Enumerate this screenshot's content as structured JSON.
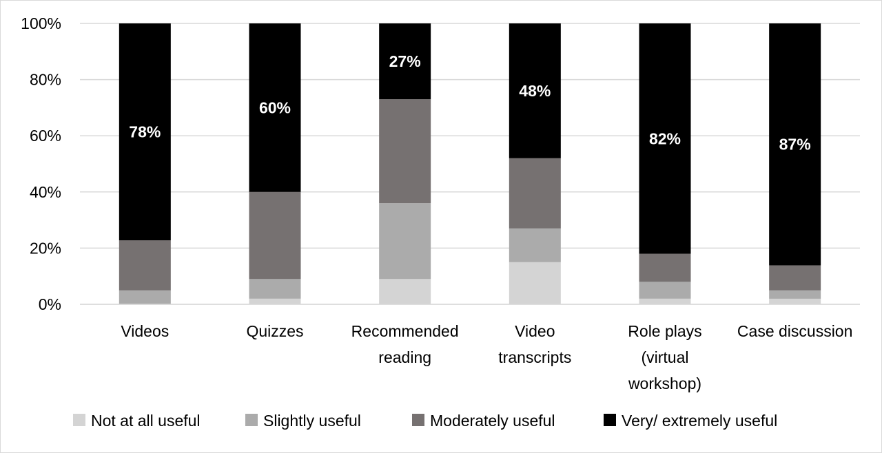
{
  "chart_data": {
    "type": "bar",
    "stacked": true,
    "percent_stacked": true,
    "categories": [
      [
        "Videos"
      ],
      [
        "Quizzes"
      ],
      [
        "Recommended",
        "reading"
      ],
      [
        "Video",
        "transcripts"
      ],
      [
        "Role plays",
        "(virtual",
        "workshop)"
      ],
      [
        "Case discussion"
      ]
    ],
    "series": [
      {
        "name": "Not at all useful",
        "color": "#d4d4d4",
        "values": [
          0,
          2,
          9,
          15,
          2,
          2
        ]
      },
      {
        "name": "Slightly useful",
        "color": "#ababab",
        "values": [
          5,
          7,
          27,
          12,
          6,
          3
        ]
      },
      {
        "name": "Moderately useful",
        "color": "#767171",
        "values": [
          18,
          31,
          37,
          25,
          10,
          9
        ]
      },
      {
        "name": "Very/ extremely useful",
        "color": "#000000",
        "values": [
          78,
          60,
          27,
          48,
          82,
          87
        ]
      }
    ],
    "data_labels": [
      "78%",
      "60%",
      "27%",
      "48%",
      "82%",
      "87%"
    ],
    "y_ticks": [
      "0%",
      "20%",
      "40%",
      "60%",
      "80%",
      "100%"
    ],
    "ylim": [
      0,
      100
    ],
    "grid": true,
    "legend_position": "bottom"
  }
}
